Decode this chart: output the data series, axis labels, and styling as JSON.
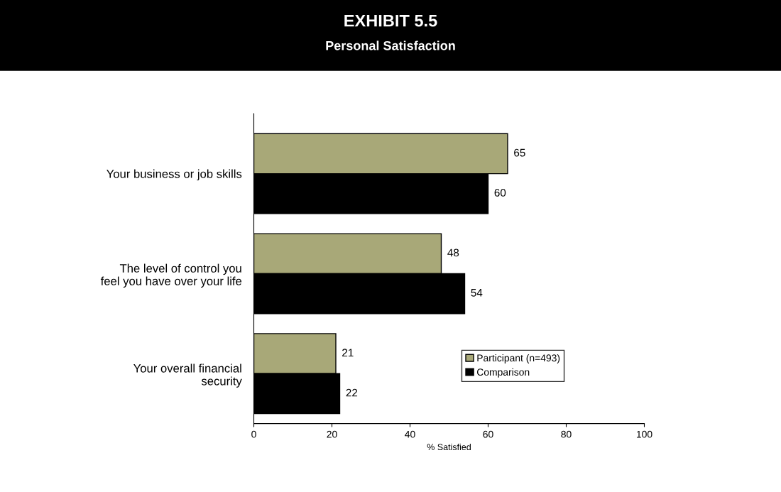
{
  "chart_data": {
    "type": "bar",
    "orientation": "horizontal",
    "title": "EXHIBIT 5.5",
    "subtitle": "Personal Satisfaction",
    "categories": [
      "Your business or job skills",
      "The level of control you\nfeel you have over your life",
      "Your overall financial\nsecurity"
    ],
    "series": [
      {
        "name": "Participant (n=493)",
        "color": "#a8a878",
        "values": [
          65,
          48,
          21
        ]
      },
      {
        "name": "Comparison",
        "color": "#000000",
        "values": [
          60,
          54,
          22
        ]
      }
    ],
    "xlabel": "% Satisfied",
    "xlim": [
      0,
      100
    ],
    "xticks": [
      0,
      20,
      40,
      60,
      80,
      100
    ],
    "data_labels": true,
    "legend": "bottom right",
    "grid": false
  }
}
